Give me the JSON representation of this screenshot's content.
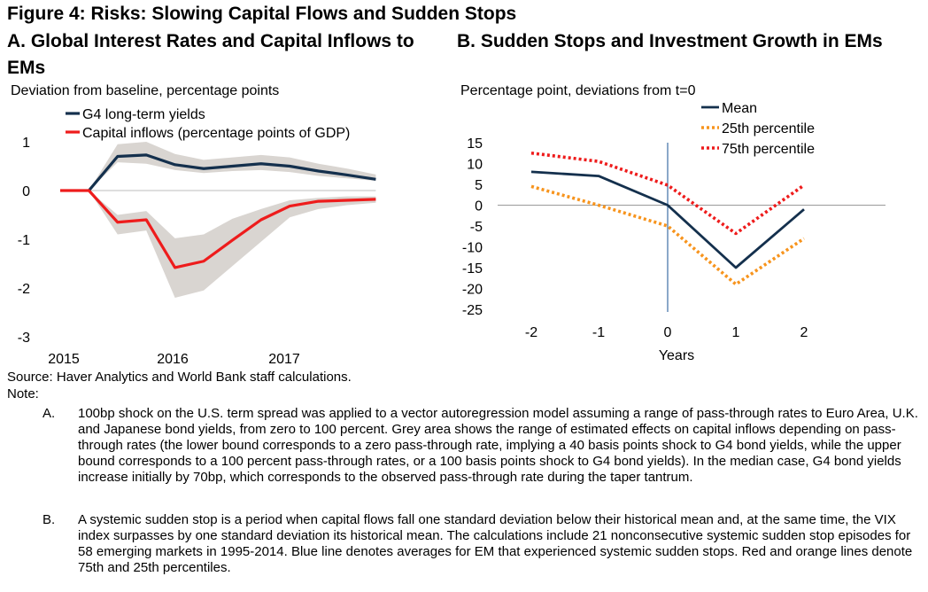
{
  "figure_title": "Figure 4: Risks: Slowing Capital Flows and Sudden Stops",
  "panel_a": {
    "title": "A. Global Interest Rates and Capital Inflows to EMs",
    "unit": "Deviation from baseline, percentage points"
  },
  "panel_b": {
    "title": "B. Sudden Stops and Investment Growth in EMs",
    "unit": "Percentage point, deviations from t=0"
  },
  "chart_data": [
    {
      "type": "line",
      "x_tick_labels": [
        "2015",
        "2016",
        "2017"
      ],
      "y_tick_labels": [
        "1",
        "0",
        "-1",
        "-2",
        "-3"
      ],
      "ylim": [
        -3,
        1
      ],
      "x": [
        0,
        1,
        2,
        3,
        4,
        5,
        6,
        7,
        8,
        9,
        10,
        11
      ],
      "series": [
        {
          "name": "G4 long-term yields",
          "color": "#14304d",
          "values": [
            null,
            0,
            0.7,
            0.73,
            0.53,
            0.45,
            0.5,
            0.55,
            0.5,
            0.4,
            0.32,
            0.23
          ],
          "band_low": [
            null,
            0,
            0.58,
            0.55,
            0.42,
            0.36,
            0.4,
            0.42,
            0.38,
            0.3,
            0.25,
            0.2
          ],
          "band_high": [
            null,
            0,
            0.95,
            1.0,
            0.75,
            0.63,
            0.68,
            0.73,
            0.68,
            0.55,
            0.45,
            0.33
          ]
        },
        {
          "name": "Capital inflows (percentage points of GDP)",
          "color": "#ee1c1c",
          "values": [
            0,
            0,
            -0.65,
            -0.6,
            -1.58,
            -1.45,
            -1.02,
            -0.6,
            -0.32,
            -0.22,
            -0.2,
            -0.18
          ],
          "band_low": [
            0,
            0,
            -0.9,
            -0.82,
            -2.2,
            -2.05,
            -1.55,
            -1.05,
            -0.55,
            -0.38,
            -0.3,
            -0.25
          ],
          "band_high": [
            0,
            0,
            -0.5,
            -0.42,
            -0.98,
            -0.9,
            -0.58,
            -0.38,
            -0.2,
            -0.15,
            -0.12,
            -0.12
          ]
        }
      ],
      "band_color": "#d9d5d1",
      "legend_position": "top-left"
    },
    {
      "type": "line",
      "xlabel": "Years",
      "x": [
        -2,
        -1,
        0,
        1,
        2
      ],
      "x_tick_labels": [
        "-2",
        "-1",
        "0",
        "1",
        "2"
      ],
      "y_tick_labels": [
        "15",
        "10",
        "5",
        "0",
        "-5",
        "-10",
        "-15",
        "-20",
        "-25"
      ],
      "ylim": [
        -25,
        15
      ],
      "series": [
        {
          "name": "Mean",
          "color": "#14304d",
          "style": "solid",
          "values": [
            8,
            7,
            0,
            -15,
            -1
          ]
        },
        {
          "name": "25th percentile",
          "color": "#f7941d",
          "style": "dotted",
          "values": [
            4.5,
            0,
            -5,
            -19,
            -8
          ]
        },
        {
          "name": "75th percentile",
          "color": "#ee1c1c",
          "style": "dotted",
          "values": [
            12.5,
            10.5,
            4.8,
            -6.8,
            4.8
          ]
        }
      ],
      "legend_position": "top-right"
    }
  ],
  "source": "Source: Haver Analytics and World Bank staff calculations.",
  "note_label": "Note:",
  "notes": [
    {
      "letter": "A.",
      "text": "100bp shock on the U.S. term spread was applied to a vector autoregression model assuming a range of pass-through rates to Euro Area, U.K. and Japanese bond yields, from zero to 100 percent. Grey area shows the range of estimated effects on capital inflows depending on pass-through rates (the lower bound corresponds to a zero pass-through rate, implying a 40 basis points shock to G4 bond yields, while the upper bound corresponds to a 100 percent pass-through rates, or a 100 basis points shock to G4 bond yields). In the median case, G4 bond yields increase initially by 70bp, which corresponds to the observed pass-through rate during the taper tantrum."
    },
    {
      "letter": "B.",
      "text": "A systemic sudden stop is a period when capital flows fall one standard deviation below their historical mean and, at the same time, the VIX index surpasses by one standard deviation its historical mean. The calculations include 21 nonconsecutive systemic sudden stop episodes for 58 emerging markets in 1995-2014. Blue line denotes averages for EM that experienced systemic sudden stops. Red and orange lines denote 75th and 25th percentiles."
    }
  ]
}
